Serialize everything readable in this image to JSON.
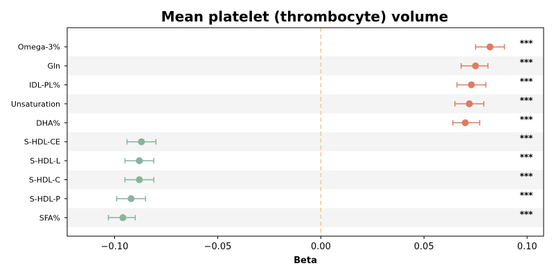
{
  "chart_data": {
    "type": "forest",
    "title": "Mean platelet (thrombocyte) volume",
    "xlabel": "Beta",
    "xlim": [
      -0.123,
      0.108
    ],
    "xticks": [
      "−0.10",
      "−0.05",
      "0.00",
      "0.05",
      "0.10"
    ],
    "xtick_values": [
      -0.1,
      -0.05,
      0.0,
      0.05,
      0.1
    ],
    "reference_line": 0.0,
    "colors": {
      "positive": "#e07b61",
      "negative": "#86b49c",
      "reference": "#f0c98a",
      "band": "#f4f4f4"
    },
    "rows": [
      {
        "label": "Omega-3%",
        "beta": 0.082,
        "ci_low": 0.075,
        "ci_high": 0.089,
        "sig": "***"
      },
      {
        "label": "Gln",
        "beta": 0.075,
        "ci_low": 0.068,
        "ci_high": 0.081,
        "sig": "***"
      },
      {
        "label": "IDL-PL%",
        "beta": 0.073,
        "ci_low": 0.066,
        "ci_high": 0.08,
        "sig": "***"
      },
      {
        "label": "Unsaturation",
        "beta": 0.072,
        "ci_low": 0.065,
        "ci_high": 0.079,
        "sig": "***"
      },
      {
        "label": "DHA%",
        "beta": 0.07,
        "ci_low": 0.064,
        "ci_high": 0.077,
        "sig": "***"
      },
      {
        "label": "S-HDL-CE",
        "beta": -0.087,
        "ci_low": -0.094,
        "ci_high": -0.08,
        "sig": "***"
      },
      {
        "label": "S-HDL-L",
        "beta": -0.088,
        "ci_low": -0.095,
        "ci_high": -0.081,
        "sig": "***"
      },
      {
        "label": "S-HDL-C",
        "beta": -0.088,
        "ci_low": -0.095,
        "ci_high": -0.081,
        "sig": "***"
      },
      {
        "label": "S-HDL-P",
        "beta": -0.092,
        "ci_low": -0.099,
        "ci_high": -0.085,
        "sig": "***"
      },
      {
        "label": "SFA%",
        "beta": -0.096,
        "ci_low": -0.103,
        "ci_high": -0.09,
        "sig": "***"
      }
    ]
  }
}
